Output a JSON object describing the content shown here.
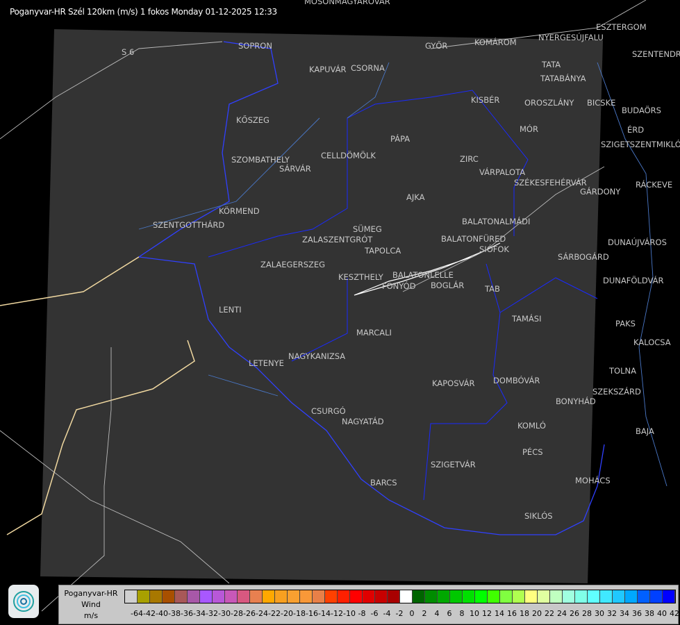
{
  "title": "Poganyvar-HR Szél 120km (m/s) 1 fokos Monday 01-12-2025 12:33",
  "cities": [
    [
      "MOSONMAGYARÓVÁR",
      438,
      -4
    ],
    [
      "SOPRON",
      343,
      60
    ],
    [
      "GYŐR",
      612,
      60
    ],
    [
      "KOMÁROM",
      683,
      55
    ],
    [
      "ESZTERGOM",
      858,
      33
    ],
    [
      "NYERGESÚJFALU",
      775,
      48
    ],
    [
      "SZENTENDRE",
      910,
      72
    ],
    [
      "KAPUVÁR",
      445,
      94
    ],
    [
      "CSORNA",
      505,
      92
    ],
    [
      "TATA",
      780,
      87
    ],
    [
      "TATABÁNYA",
      778,
      107
    ],
    [
      "KISBÉR",
      678,
      138
    ],
    [
      "OROSZLÁNY",
      755,
      142
    ],
    [
      "BICSKE",
      845,
      142
    ],
    [
      "BUDAÖRS",
      895,
      153
    ],
    [
      "KŐSZEG",
      340,
      167
    ],
    [
      "MÓR",
      748,
      180
    ],
    [
      "ÉRD",
      903,
      181
    ],
    [
      "SZIGETSZENTMIKLÓS",
      865,
      202
    ],
    [
      "PÁPA",
      562,
      194
    ],
    [
      "SZOMBATHELY",
      333,
      224
    ],
    [
      "SÁRVÁR",
      402,
      216
    ],
    [
      "CELLDÖMÖLK",
      462,
      218
    ],
    [
      "ZIRC",
      662,
      223
    ],
    [
      "VÁRPALOTA",
      690,
      242
    ],
    [
      "SZÉKESFEHÉRVÁR",
      740,
      242
    ],
    [
      "GÁRDONY",
      835,
      249
    ],
    [
      "RÁCKEVE",
      915,
      260
    ],
    [
      "AJKA",
      585,
      278
    ],
    [
      "KÖRMEND",
      315,
      298
    ],
    [
      "SZENTGOTTHÁRD",
      220,
      318
    ],
    [
      "BALATONALMÁDI",
      665,
      313
    ],
    [
      "SÜMEG",
      508,
      324
    ],
    [
      "ZALASZENTGRÓT",
      435,
      333
    ],
    [
      "BALATONFÜRED",
      635,
      338
    ],
    [
      "SIÓFOK",
      690,
      347
    ],
    [
      "DUNAÚJVÁROS",
      875,
      343
    ],
    [
      "TAPOLCA",
      525,
      355
    ],
    [
      "ZALAEGERSZEG",
      375,
      375
    ],
    [
      "SÁRBOGÁRD",
      803,
      364
    ],
    [
      "KESZTHELY",
      487,
      393
    ],
    [
      "BALATONLELLE",
      565,
      390
    ],
    [
      "FONYÓD",
      550,
      406
    ],
    [
      "BOGLÁR",
      620,
      396
    ],
    [
      "DUNAFÖLDVÁR",
      868,
      398
    ],
    [
      "TAB",
      698,
      410
    ],
    [
      "LENTI",
      315,
      440
    ],
    [
      "TAMÁSI",
      737,
      453
    ],
    [
      "PAKS",
      886,
      460
    ],
    [
      "MARCALI",
      513,
      473
    ],
    [
      "KALOCSA",
      912,
      487
    ],
    [
      "NAGYKANIZSA",
      415,
      507
    ],
    [
      "LETENYE",
      358,
      517
    ],
    [
      "TOLNA",
      877,
      528
    ],
    [
      "KAPOSVÁR",
      622,
      546
    ],
    [
      "DOMBÓVÁR",
      710,
      542
    ],
    [
      "SZEKSZÁRD",
      853,
      558
    ],
    [
      "BONYHÁD",
      800,
      569
    ],
    [
      "CSURGÓ",
      448,
      586
    ],
    [
      "NAGYATÁD",
      492,
      592
    ],
    [
      "KOMLÓ",
      745,
      607
    ],
    [
      "BAJA",
      915,
      615
    ],
    [
      "PÉCS",
      752,
      645
    ],
    [
      "SZIGETVÁR",
      620,
      663
    ],
    [
      "MOHÁCS",
      828,
      686
    ],
    [
      "BARCS",
      533,
      689
    ],
    [
      "SIKLÓS",
      755,
      737
    ],
    [
      "S 6",
      175,
      69
    ]
  ],
  "legend": {
    "title": "Poganyvar-HR",
    "subtitle": "Wind",
    "unit": "m/s",
    "colors": [
      "#d0d0d0",
      "#a8a000",
      "#a87800",
      "#a85000",
      "#a85858",
      "#a858a8",
      "#a858ff",
      "#b858d8",
      "#c858b8",
      "#d85880",
      "#e88050",
      "#ffa800",
      "#f8a020",
      "#f8a030",
      "#f89838",
      "#e88048",
      "#ff4000",
      "#ff2000",
      "#ff0000",
      "#e00000",
      "#c80000",
      "#a80000",
      "#ffffff",
      "#006400",
      "#008c00",
      "#00a800",
      "#00c800",
      "#00e000",
      "#00ff00",
      "#40ff00",
      "#80ff40",
      "#b0ff50",
      "#ffff80",
      "#e0ffa0",
      "#c0ffc0",
      "#a0ffe0",
      "#80ffe8",
      "#60ffff",
      "#40e8ff",
      "#20c8ff",
      "#00a8ff",
      "#0060ff",
      "#0040ff",
      "#0000ff"
    ],
    "ticks": [
      "-64",
      "-42",
      "-40",
      "-38",
      "-36",
      "-34",
      "-32",
      "-30",
      "-28",
      "-26",
      "-24",
      "-22",
      "-20",
      "-18",
      "-16",
      "-14",
      "-12",
      "-10",
      "-8",
      "-6",
      "-4",
      "-2",
      "0",
      "2",
      "4",
      "6",
      "8",
      "10",
      "12",
      "14",
      "16",
      "18",
      "20",
      "22",
      "24",
      "26",
      "28",
      "30",
      "32",
      "34",
      "36",
      "38",
      "40",
      "42"
    ]
  }
}
